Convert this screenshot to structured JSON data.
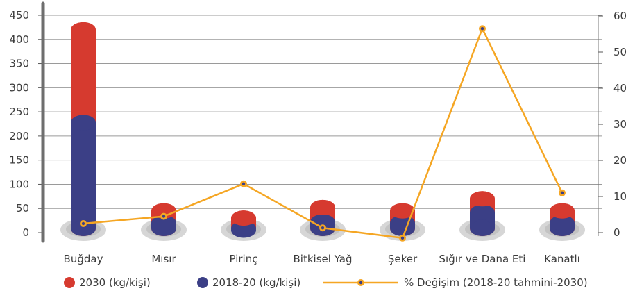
{
  "chart_data": {
    "type": "bar",
    "categories": [
      "Buğday",
      "Mısır",
      "Pirinç",
      "Bitkisel Yağ",
      "Şeker",
      "Sığır ve Dana Eti",
      "Kanatlı"
    ],
    "series": [
      {
        "name": "2030 (kg/kişi)",
        "axis": "left",
        "type": "bar",
        "color": "#d63a2f",
        "values": [
          420,
          45,
          30,
          52,
          45,
          70,
          45
        ]
      },
      {
        "name": "2018-20 (kg/kişi)",
        "axis": "left",
        "type": "bar",
        "color": "#3b3f86",
        "values": [
          228,
          20,
          5,
          22,
          20,
          42,
          20
        ]
      },
      {
        "name": "% Değişim (2018-20 tahmini-2030)",
        "axis": "right",
        "type": "line",
        "color": "#f5a623",
        "values": [
          2.5,
          4.5,
          13.5,
          1.3,
          -1.5,
          56.5,
          11
        ]
      }
    ],
    "ylim_left": [
      0,
      450
    ],
    "yticks_left": [
      0,
      50,
      100,
      150,
      200,
      250,
      300,
      350,
      400,
      450
    ],
    "ylim_right": [
      0,
      60
    ],
    "yticks_right": [
      0,
      10,
      20,
      30,
      40,
      50,
      60
    ],
    "grid": true,
    "legend_position": "bottom"
  }
}
